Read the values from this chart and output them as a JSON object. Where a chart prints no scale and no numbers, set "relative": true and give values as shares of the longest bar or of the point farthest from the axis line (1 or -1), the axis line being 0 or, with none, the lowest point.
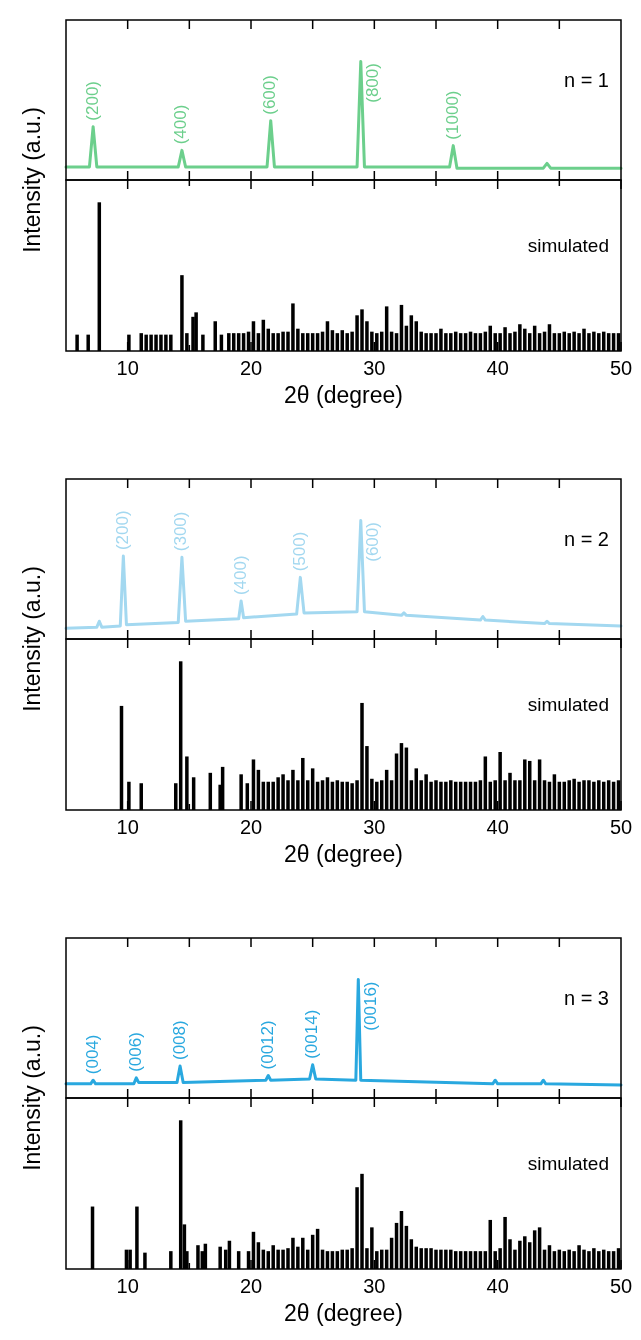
{
  "chart_data": [
    {
      "type": "line",
      "relative": true,
      "ylabel": "Intensity (a.u.)",
      "xlim": [
        5,
        50
      ],
      "xticks": [
        10,
        15,
        20,
        25,
        30,
        35,
        40,
        45
      ],
      "tick_labels": false,
      "series": [
        {
          "color": "#6ccf8c",
          "x": [
            5,
            6.9,
            7.2,
            7.5,
            14.1,
            14.4,
            14.7,
            21.3,
            21.6,
            21.9,
            28.6,
            28.9,
            29.2,
            36.1,
            36.4,
            36.7,
            43.7,
            44.0,
            44.3,
            50
          ],
          "values": [
            0.11,
            0.11,
            0.45,
            0.11,
            0.11,
            0.25,
            0.11,
            0.11,
            0.5,
            0.11,
            0.11,
            1,
            0.11,
            0.11,
            0.29,
            0.1,
            0.1,
            0.14,
            0.1,
            0.1
          ]
        }
      ],
      "annotations": [
        "n = 1",
        {
          "text": "(200)",
          "x": 7.2,
          "y": 0.45
        },
        {
          "text": "(400)",
          "x": 14.4,
          "y": 0.25
        },
        {
          "text": "(600)",
          "x": 21.6,
          "y": 0.5
        },
        {
          "text": "(800)",
          "x": 28.9,
          "y": 1
        },
        {
          "text": "(1000)",
          "x": 36.4,
          "y": 0.29
        }
      ]
    },
    {
      "type": "bar",
      "relative": true,
      "xlabel": "2θ (degree)",
      "xlim": [
        5,
        50
      ],
      "xticks": [
        10,
        {
          "value": 15,
          "label": null
        },
        20,
        {
          "value": 25,
          "label": null
        },
        30,
        {
          "value": 35,
          "label": null
        },
        40,
        {
          "value": 45,
          "label": null
        },
        50
      ],
      "tick_labels": "x",
      "series": [
        {
          "color": "#000000",
          "x": [
            5.9,
            6.8,
            7.7,
            10.1,
            11.1,
            11.5,
            11.9,
            12.3,
            12.7,
            13.1,
            13.5,
            14.4,
            14.8,
            15.3,
            15.55,
            16.1,
            17.1,
            17.6,
            18.2,
            18.6,
            19.0,
            19.4,
            19.8,
            20.2,
            20.6,
            21.0,
            21.4,
            21.8,
            22.2,
            22.6,
            23.0,
            23.4,
            23.8,
            24.2,
            24.6,
            25.0,
            25.4,
            25.8,
            26.2,
            26.6,
            27.0,
            27.4,
            27.8,
            28.2,
            28.6,
            29.0,
            29.4,
            29.8,
            30.2,
            30.6,
            31.0,
            31.4,
            31.8,
            32.2,
            32.6,
            33.0,
            33.4,
            33.8,
            34.2,
            34.6,
            35.0,
            35.4,
            35.8,
            36.2,
            36.6,
            37.0,
            37.4,
            37.8,
            38.2,
            38.6,
            39.0,
            39.4,
            39.8,
            40.2,
            40.6,
            41.0,
            41.4,
            41.8,
            42.2,
            42.6,
            43.0,
            43.4,
            43.8,
            44.2,
            44.6,
            45.0,
            45.4,
            45.8,
            46.2,
            46.6,
            47.0,
            47.4,
            47.8,
            48.2,
            48.6,
            49.0,
            49.4,
            49.8
          ],
          "values": [
            0.11,
            0.11,
            1,
            0.11,
            0.12,
            0.11,
            0.11,
            0.11,
            0.11,
            0.11,
            0.11,
            0.51,
            0.12,
            0.23,
            0.26,
            0.11,
            0.2,
            0.11,
            0.12,
            0.12,
            0.12,
            0.12,
            0.13,
            0.2,
            0.12,
            0.21,
            0.15,
            0.12,
            0.12,
            0.13,
            0.13,
            0.32,
            0.15,
            0.12,
            0.12,
            0.12,
            0.12,
            0.13,
            0.2,
            0.14,
            0.12,
            0.14,
            0.12,
            0.13,
            0.24,
            0.28,
            0.2,
            0.13,
            0.12,
            0.13,
            0.3,
            0.13,
            0.12,
            0.31,
            0.17,
            0.24,
            0.2,
            0.13,
            0.12,
            0.12,
            0.12,
            0.15,
            0.12,
            0.12,
            0.13,
            0.12,
            0.12,
            0.13,
            0.12,
            0.12,
            0.13,
            0.17,
            0.12,
            0.12,
            0.16,
            0.12,
            0.13,
            0.18,
            0.15,
            0.12,
            0.17,
            0.12,
            0.13,
            0.18,
            0.12,
            0.12,
            0.13,
            0.12,
            0.13,
            0.12,
            0.15,
            0.12,
            0.13,
            0.12,
            0.13,
            0.12,
            0.12,
            0.12
          ]
        }
      ],
      "annotations": [
        "simulated"
      ]
    },
    {
      "type": "line",
      "relative": true,
      "ylabel": "Intensity (a.u.)",
      "xlim": [
        5,
        50
      ],
      "xticks": [
        10,
        15,
        20,
        25,
        30,
        35,
        40,
        45
      ],
      "tick_labels": false,
      "series": [
        {
          "color": "#a3d8f0",
          "x": [
            5,
            7.5,
            7.7,
            7.9,
            9.4,
            9.65,
            9.9,
            14.1,
            14.4,
            14.7,
            19.0,
            19.2,
            19.4,
            23.7,
            24.0,
            24.3,
            28.6,
            28.9,
            29.2,
            32.2,
            32.4,
            32.6,
            38.6,
            38.8,
            39.0,
            43.8,
            44.0,
            44.2,
            50
          ],
          "values": [
            0.09,
            0.1,
            0.15,
            0.1,
            0.11,
            0.7,
            0.12,
            0.14,
            0.69,
            0.15,
            0.17,
            0.32,
            0.18,
            0.21,
            0.52,
            0.22,
            0.23,
            1,
            0.23,
            0.2,
            0.22,
            0.2,
            0.16,
            0.19,
            0.16,
            0.13,
            0.15,
            0.13,
            0.11
          ]
        }
      ],
      "annotations": [
        "n = 2",
        {
          "text": "(200)",
          "x": 9.65,
          "y": 0.7
        },
        {
          "text": "(300)",
          "x": 14.4,
          "y": 0.69
        },
        {
          "text": "(400)",
          "x": 19.2,
          "y": 0.32
        },
        {
          "text": "(500)",
          "x": 24.0,
          "y": 0.52
        },
        {
          "text": "(600)",
          "x": 28.9,
          "y": 1
        }
      ]
    },
    {
      "type": "bar",
      "relative": true,
      "xlabel": "2θ (degree)",
      "xlim": [
        5,
        50
      ],
      "xticks": [
        10,
        {
          "value": 15,
          "label": null
        },
        20,
        {
          "value": 25,
          "label": null
        },
        30,
        {
          "value": 35,
          "label": null
        },
        40,
        {
          "value": 45,
          "label": null
        },
        50
      ],
      "tick_labels": "x",
      "series": [
        {
          "color": "#000000",
          "x": [
            9.5,
            10.1,
            11.1,
            13.9,
            14.3,
            14.8,
            15.35,
            16.7,
            17.5,
            17.7,
            19.2,
            19.7,
            20.2,
            20.6,
            21.0,
            21.4,
            21.8,
            22.2,
            22.6,
            23.0,
            23.4,
            23.8,
            24.2,
            24.6,
            25.0,
            25.4,
            25.8,
            26.2,
            26.6,
            27.0,
            27.4,
            27.8,
            28.2,
            28.6,
            29.0,
            29.4,
            29.8,
            30.2,
            30.6,
            31.0,
            31.4,
            31.8,
            32.2,
            32.6,
            33.0,
            33.4,
            33.8,
            34.2,
            34.6,
            35.0,
            35.4,
            35.8,
            36.2,
            36.6,
            37.0,
            37.4,
            37.8,
            38.2,
            38.6,
            39.0,
            39.4,
            39.8,
            40.2,
            40.6,
            41.0,
            41.4,
            41.8,
            42.2,
            42.6,
            43.0,
            43.4,
            43.8,
            44.2,
            44.6,
            45.0,
            45.4,
            45.8,
            46.2,
            46.6,
            47.0,
            47.4,
            47.8,
            48.2,
            48.6,
            49.0,
            49.4,
            49.8
          ],
          "values": [
            0.7,
            0.19,
            0.18,
            0.18,
            1,
            0.36,
            0.22,
            0.25,
            0.17,
            0.29,
            0.24,
            0.18,
            0.34,
            0.27,
            0.19,
            0.19,
            0.19,
            0.22,
            0.24,
            0.2,
            0.27,
            0.2,
            0.35,
            0.2,
            0.28,
            0.19,
            0.2,
            0.22,
            0.19,
            0.2,
            0.19,
            0.19,
            0.18,
            0.2,
            0.72,
            0.43,
            0.21,
            0.19,
            0.2,
            0.27,
            0.2,
            0.38,
            0.45,
            0.42,
            0.2,
            0.28,
            0.2,
            0.24,
            0.19,
            0.2,
            0.19,
            0.19,
            0.2,
            0.19,
            0.19,
            0.19,
            0.19,
            0.19,
            0.2,
            0.36,
            0.19,
            0.2,
            0.39,
            0.2,
            0.25,
            0.2,
            0.2,
            0.34,
            0.33,
            0.2,
            0.34,
            0.2,
            0.19,
            0.24,
            0.19,
            0.19,
            0.2,
            0.21,
            0.19,
            0.2,
            0.2,
            0.19,
            0.2,
            0.19,
            0.2,
            0.19,
            0.2
          ]
        }
      ],
      "annotations": [
        "simulated"
      ]
    },
    {
      "type": "line",
      "relative": true,
      "ylabel": "Intensity (a.u.)",
      "xlim": [
        5,
        50
      ],
      "xticks": [
        10,
        15,
        20,
        25,
        30,
        35,
        40,
        45
      ],
      "tick_labels": false,
      "series": [
        {
          "color": "#29a8df",
          "x": [
            5,
            7.0,
            7.2,
            7.4,
            10.5,
            10.7,
            10.9,
            14.0,
            14.25,
            14.5,
            21.2,
            21.4,
            21.6,
            24.75,
            25.0,
            25.25,
            28.5,
            28.7,
            28.9,
            39.6,
            39.8,
            40.0,
            43.5,
            43.7,
            43.9,
            50
          ],
          "values": [
            0.12,
            0.12,
            0.15,
            0.12,
            0.12,
            0.17,
            0.13,
            0.13,
            0.27,
            0.13,
            0.15,
            0.19,
            0.15,
            0.16,
            0.28,
            0.16,
            0.15,
            1,
            0.15,
            0.12,
            0.15,
            0.12,
            0.12,
            0.15,
            0.12,
            0.11
          ]
        }
      ],
      "annotations": [
        "n = 3",
        {
          "text": "(004)",
          "x": 7.2,
          "y": 0.15
        },
        {
          "text": "(006)",
          "x": 10.7,
          "y": 0.17
        },
        {
          "text": "(008)",
          "x": 14.25,
          "y": 0.27
        },
        {
          "text": "(0012)",
          "x": 21.4,
          "y": 0.19
        },
        {
          "text": "(0014)",
          "x": 25.0,
          "y": 0.28
        },
        {
          "text": "(0016)",
          "x": 28.7,
          "y": 1
        }
      ]
    },
    {
      "type": "bar",
      "relative": true,
      "xlabel": "2θ (degree)",
      "xlim": [
        5,
        50
      ],
      "xticks": [
        10,
        {
          "value": 15,
          "label": null
        },
        20,
        {
          "value": 25,
          "label": null
        },
        30,
        {
          "value": 35,
          "label": null
        },
        40,
        {
          "value": 45,
          "label": null
        },
        50
      ],
      "tick_labels": "x",
      "series": [
        {
          "color": "#000000",
          "x": [
            7.15,
            9.9,
            10.2,
            10.75,
            11.4,
            13.5,
            14.3,
            14.6,
            14.8,
            15.7,
            16.05,
            16.3,
            17.5,
            17.95,
            18.25,
            19.0,
            19.8,
            20.2,
            20.6,
            21.0,
            21.4,
            21.8,
            22.2,
            22.6,
            23.0,
            23.4,
            23.8,
            24.2,
            24.6,
            25.0,
            25.4,
            25.8,
            26.2,
            26.6,
            27.0,
            27.4,
            27.8,
            28.2,
            28.6,
            29.0,
            29.4,
            29.8,
            30.2,
            30.6,
            31.0,
            31.4,
            31.8,
            32.2,
            32.6,
            33.0,
            33.4,
            33.8,
            34.2,
            34.6,
            35.0,
            35.4,
            35.8,
            36.2,
            36.6,
            37.0,
            37.4,
            37.8,
            38.2,
            38.6,
            39.0,
            39.4,
            39.8,
            40.2,
            40.6,
            41.0,
            41.4,
            41.8,
            42.2,
            42.6,
            43.0,
            43.4,
            43.8,
            44.2,
            44.6,
            45.0,
            45.4,
            45.8,
            46.2,
            46.6,
            47.0,
            47.4,
            47.8,
            48.2,
            48.6,
            49.0,
            49.4,
            49.8
          ],
          "values": [
            0.42,
            0.13,
            0.13,
            0.42,
            0.11,
            0.12,
            1,
            0.3,
            0.12,
            0.16,
            0.12,
            0.17,
            0.15,
            0.13,
            0.19,
            0.12,
            0.12,
            0.25,
            0.18,
            0.13,
            0.12,
            0.16,
            0.13,
            0.13,
            0.14,
            0.21,
            0.15,
            0.21,
            0.13,
            0.23,
            0.27,
            0.13,
            0.12,
            0.12,
            0.12,
            0.13,
            0.13,
            0.14,
            0.55,
            0.64,
            0.14,
            0.28,
            0.12,
            0.13,
            0.13,
            0.21,
            0.31,
            0.39,
            0.29,
            0.2,
            0.15,
            0.14,
            0.14,
            0.14,
            0.13,
            0.13,
            0.13,
            0.13,
            0.12,
            0.12,
            0.12,
            0.12,
            0.12,
            0.12,
            0.12,
            0.33,
            0.12,
            0.14,
            0.35,
            0.2,
            0.13,
            0.19,
            0.22,
            0.18,
            0.26,
            0.28,
            0.13,
            0.16,
            0.12,
            0.13,
            0.12,
            0.13,
            0.12,
            0.16,
            0.13,
            0.12,
            0.14,
            0.12,
            0.13,
            0.12,
            0.12,
            0.14
          ]
        }
      ],
      "annotations": [
        "simulated"
      ]
    }
  ]
}
